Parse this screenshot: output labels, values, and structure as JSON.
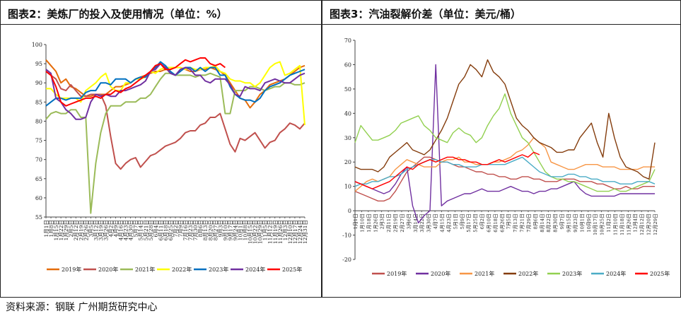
{
  "source": "资料来源：钢联  广州期货研究中心",
  "chart_data": [
    {
      "type": "line",
      "title": "图表2：美炼厂的投入及使用情况（单位：%）",
      "ylim": [
        55,
        100
      ],
      "yticks": [
        55,
        60,
        65,
        70,
        75,
        80,
        85,
        90,
        95,
        100
      ],
      "week_count": 53,
      "xtick_labels": [
        "1月1日",
        "1月8日",
        "1月15日",
        "1月22日",
        "1月29日",
        "2月5日",
        "2月12日",
        "2月19日",
        "2月26日",
        "3月5日",
        "3月12日",
        "3月19日",
        "3月26日",
        "4月2日",
        "4月9日",
        "4月16日",
        "4月23日",
        "4月30日",
        "5月7日",
        "5月14日",
        "5月21日",
        "5月28日",
        "6月4日",
        "6月11日",
        "6月18日",
        "6月25日",
        "7月2日",
        "7月9日",
        "7月16日",
        "7月23日",
        "7月30日",
        "8月6日",
        "8月13日",
        "8月20日",
        "8月27日",
        "9月3日",
        "9月10日",
        "9月17日",
        "9月24日",
        "10月1日",
        "10月8日",
        "10月15日",
        "10月22日",
        "10月29日",
        "11月5日",
        "11月12日",
        "11月19日",
        "11月26日",
        "12月3日",
        "12月10日",
        "12月17日",
        "12月24日",
        "12月31日"
      ],
      "legend_position": "bottom",
      "series": [
        {
          "name": "2019年",
          "color": "#E46C0A",
          "values": [
            96,
            94.5,
            93,
            90,
            91,
            89,
            88.5,
            87.5,
            86.5,
            86.5,
            87,
            87,
            87,
            88,
            89,
            89,
            89.5,
            90,
            91,
            91.5,
            92,
            92.5,
            93,
            93,
            93.5,
            93.5,
            94,
            94,
            93.5,
            93,
            93,
            93.5,
            93.5,
            94,
            93.5,
            93,
            92,
            90,
            88,
            86,
            85.5,
            83.5,
            85,
            87,
            88,
            89.5,
            90,
            90.5,
            91,
            92,
            93,
            94,
            94.5
          ]
        },
        {
          "name": "2020年",
          "color": "#C0504D",
          "values": [
            93,
            92,
            91,
            88.5,
            88,
            89.5,
            88,
            86.5,
            86.5,
            87,
            87,
            87,
            84,
            76,
            69,
            67.5,
            69,
            70,
            70.5,
            68,
            69.5,
            71,
            71.5,
            72.5,
            73.5,
            74,
            74.5,
            75.5,
            77,
            77.5,
            77.5,
            79,
            79.5,
            81,
            81,
            82,
            78,
            74,
            72,
            75.5,
            75,
            76,
            77,
            75,
            73,
            74.5,
            75,
            77,
            78,
            79.5,
            79,
            78,
            79.5
          ]
        },
        {
          "name": "2021年",
          "color": "#9BBB59",
          "values": [
            80.5,
            82,
            82.5,
            82,
            82,
            83,
            83,
            81,
            81,
            56,
            69,
            77,
            82,
            84,
            84,
            84,
            85,
            85,
            85,
            86,
            86,
            87,
            89,
            91,
            92.5,
            92.5,
            92,
            92,
            92,
            92,
            91.5,
            92,
            92,
            92.5,
            92,
            91.5,
            82,
            82,
            88,
            88,
            88,
            89,
            89,
            88.5,
            88,
            88.5,
            89,
            89,
            90,
            90,
            89.5,
            89.5,
            90
          ]
        },
        {
          "name": "2022年",
          "color": "#FFFF00",
          "values": [
            88.5,
            88.5,
            87,
            86,
            86,
            86,
            86,
            85,
            88,
            89,
            90,
            91.5,
            92.5,
            89,
            88,
            88,
            90,
            90,
            91,
            91,
            91.5,
            93,
            92.5,
            93.5,
            94,
            94,
            94,
            94,
            93.5,
            94,
            93.5,
            93.5,
            94,
            94,
            94.5,
            93,
            92.5,
            91,
            90.5,
            90.5,
            90,
            90,
            89,
            90,
            92,
            94,
            95,
            95.5,
            92,
            92.5,
            93.5,
            94.5,
            79
          ]
        },
        {
          "name": "2023年",
          "color": "#0070C0",
          "values": [
            84,
            85,
            86,
            86,
            85.5,
            86,
            86,
            86,
            87.5,
            88,
            88,
            90,
            90,
            89.5,
            91,
            91,
            91,
            90,
            91,
            91.5,
            91.5,
            93,
            94,
            95.5,
            94.5,
            93,
            92,
            93,
            94,
            94,
            93,
            94,
            93,
            94,
            94,
            92,
            92,
            89,
            87,
            86,
            85.5,
            85.5,
            85,
            86,
            88,
            89,
            89.5,
            90,
            91,
            92,
            92.5,
            93,
            93.5
          ]
        },
        {
          "name": "2024年",
          "color": "#7030A0",
          "values": [
            93.5,
            92.5,
            86,
            85,
            83,
            82,
            80.5,
            80.5,
            81,
            85,
            87,
            86.5,
            87,
            86.5,
            86.5,
            88,
            88,
            88.5,
            89,
            89.5,
            90.5,
            93,
            93.5,
            95,
            94,
            92.5,
            92,
            93.5,
            94,
            93.5,
            92,
            92,
            90.5,
            90,
            91,
            91,
            91,
            89.5,
            87,
            86.5,
            89,
            88.5,
            88.5,
            88,
            90,
            90.5,
            91,
            90.5,
            90,
            90,
            91,
            92,
            92.5
          ]
        },
        {
          "name": "2025年",
          "color": "#FF0000",
          "values": [
            93,
            92,
            89,
            85,
            84,
            84.5,
            85,
            85.5,
            86,
            86,
            86.5,
            86,
            87,
            87,
            88,
            87.5,
            88.5,
            89,
            90,
            91,
            92,
            93,
            94.5,
            95,
            93.5,
            93.5,
            94,
            95,
            96,
            95.5,
            96,
            96.5,
            96.5,
            95,
            94.5,
            95,
            94
          ]
        }
      ]
    },
    {
      "type": "line",
      "title": "图表3：汽油裂解价差（单位：美元/桶）",
      "ylim": [
        -20,
        70
      ],
      "yticks": [
        -20,
        -10,
        0,
        10,
        20,
        30,
        40,
        50,
        60,
        70
      ],
      "week_count": 53,
      "xtick_labels": [
        "1月1日",
        "1月10日",
        "1月18日",
        "1月26日",
        "2月3日",
        "2月11日",
        "2月19日",
        "2月27日",
        "3月6日",
        "3月14日",
        "3月22日",
        "3月30日",
        "4月7日",
        "4月15日",
        "4月23日",
        "5月1日",
        "5月9日",
        "5月17日",
        "5月25日",
        "6月2日",
        "6月10日",
        "6月18日",
        "6月26日",
        "7月5日",
        "7月13日",
        "7月21日",
        "7月29日",
        "8月6日",
        "8月14日",
        "8月22日",
        "8月30日",
        "9月7日",
        "9月15日",
        "9月23日",
        "10月1日",
        "10月9日",
        "10月17日",
        "10月25日",
        "11月2日",
        "11月10日",
        "11月18日",
        "11月26日",
        "12月4日",
        "12月12日",
        "12月20日",
        "12月29日"
      ],
      "legend_position": "bottom",
      "series": [
        {
          "name": "2019年",
          "color": "#C0504D",
          "values": [
            8,
            7,
            6,
            5,
            4,
            4,
            5,
            8,
            12,
            16,
            18,
            20,
            22,
            22,
            21,
            20,
            20,
            19,
            18,
            18,
            17,
            16,
            16,
            15,
            15,
            14,
            14,
            13,
            13,
            14,
            14,
            13,
            13,
            12,
            12,
            12,
            13,
            13,
            13,
            12,
            12,
            12,
            11,
            11,
            10,
            9,
            9,
            10,
            9,
            9,
            10,
            10,
            10
          ]
        },
        {
          "name": "2020年",
          "color": "#7030A0",
          "values": [
            12,
            11,
            10,
            9,
            8,
            7,
            8,
            11,
            15,
            18,
            2,
            -5,
            -2,
            0,
            60,
            2,
            4,
            5,
            6,
            7,
            7,
            8,
            9,
            8,
            8,
            8,
            9,
            10,
            9,
            8,
            8,
            7,
            8,
            8,
            9,
            9,
            10,
            11,
            12,
            9,
            7,
            6,
            6,
            6,
            6,
            6,
            7,
            7,
            7,
            7,
            7,
            7,
            7
          ]
        },
        {
          "name": "2021年",
          "color": "#F79646",
          "values": [
            8,
            10,
            12,
            13,
            12,
            13,
            14,
            17,
            19,
            21,
            20,
            19,
            18,
            18,
            18,
            20,
            21,
            21,
            22,
            20,
            20,
            19,
            19,
            19,
            20,
            20,
            21,
            22,
            24,
            25,
            27,
            30,
            28,
            26,
            20,
            19,
            18,
            17,
            17,
            18,
            19,
            19,
            19,
            18,
            18,
            18,
            17,
            17,
            17,
            17,
            18,
            18,
            18
          ]
        },
        {
          "name": "2022年",
          "color": "#843C0C",
          "values": [
            18,
            17,
            17,
            17,
            16,
            18,
            22,
            24,
            26,
            28,
            25,
            24,
            23,
            25,
            29,
            33,
            38,
            45,
            52,
            55,
            60,
            58,
            55,
            62,
            57,
            55,
            52,
            45,
            38,
            35,
            33,
            30,
            28,
            27,
            26,
            24,
            24,
            25,
            25,
            30,
            33,
            36,
            28,
            22,
            40,
            30,
            22,
            18,
            17,
            16,
            14,
            13,
            28
          ]
        },
        {
          "name": "2023年",
          "color": "#92D050",
          "values": [
            28,
            35,
            32,
            29,
            29,
            30,
            31,
            33,
            36,
            37,
            38,
            39,
            35,
            33,
            30,
            29,
            28,
            32,
            34,
            32,
            31,
            28,
            30,
            35,
            39,
            42,
            48,
            40,
            35,
            30,
            28,
            24,
            20,
            16,
            14,
            13,
            13,
            12,
            12,
            11,
            10,
            9,
            8,
            8,
            8,
            9,
            8,
            8,
            9,
            10,
            11,
            12,
            17
          ]
        },
        {
          "name": "2024年",
          "color": "#4BACC6",
          "values": [
            10,
            11,
            11,
            12,
            12,
            13,
            14,
            14,
            15,
            17,
            18,
            19,
            20,
            21,
            21,
            20,
            20,
            19,
            19,
            18,
            18,
            18,
            19,
            19,
            19,
            19,
            19,
            20,
            21,
            22,
            20,
            18,
            16,
            15,
            14,
            14,
            14,
            15,
            15,
            14,
            14,
            13,
            13,
            12,
            12,
            12,
            11,
            11,
            11,
            12,
            12,
            12,
            11
          ]
        },
        {
          "name": "2025年",
          "color": "#FF0000",
          "values": [
            12,
            11,
            10,
            9,
            10,
            11,
            12,
            14,
            16,
            18,
            17,
            19,
            20,
            21,
            20,
            21,
            22,
            22,
            21,
            21,
            20,
            20,
            19,
            19,
            20,
            21,
            20,
            21,
            22,
            23,
            22,
            24,
            23
          ]
        }
      ]
    }
  ]
}
